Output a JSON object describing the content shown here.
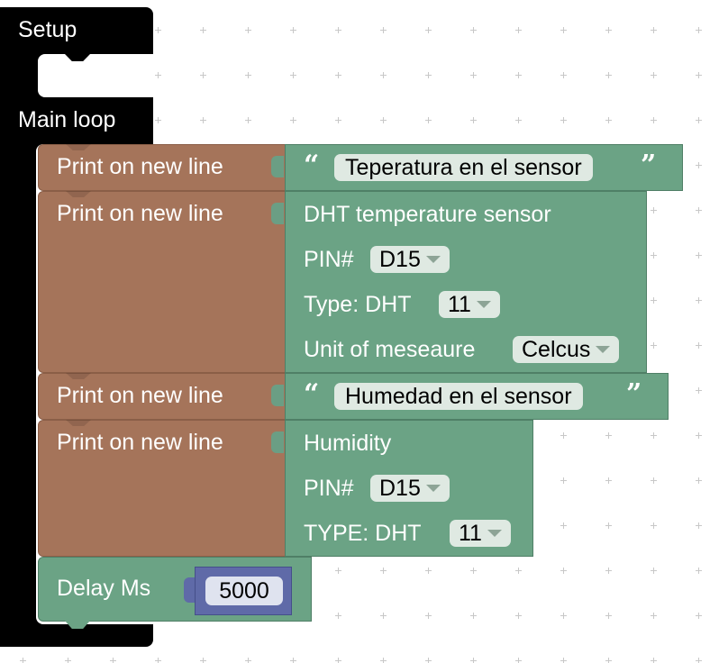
{
  "workspace": {
    "event_block": {
      "setup_label": "Setup",
      "loop_label": "Main loop"
    },
    "print_label": "Print on new line",
    "print_blocks": [
      {
        "label": "Print on new line",
        "string_value": "Teperatura en el sensor"
      },
      {
        "label": "Print on new line",
        "sensor": {
          "title": "DHT temperature sensor",
          "pin_label": "PIN#",
          "pin_value": "D15",
          "type_label": "Type: DHT",
          "type_value": "11",
          "unit_label": "Unit of meseaure",
          "unit_value": "Celcus"
        }
      },
      {
        "label": "Print on new line",
        "string_value": "Humedad en el sensor"
      },
      {
        "label": "Print on new line",
        "sensor": {
          "title": "Humidity",
          "pin_label": "PIN#",
          "pin_value": "D15",
          "type_label": "TYPE: DHT",
          "type_value": "11"
        }
      }
    ],
    "delay_block": {
      "label": "Delay Ms",
      "value": "5000"
    },
    "colors": {
      "event": "#000000",
      "print": "#a5745a",
      "value": "#6ba385",
      "number": "#5f6aa8"
    },
    "icons": {
      "open_quote": "open-quote-icon",
      "close_quote": "close-quote-icon",
      "dropdown": "chevron-down-icon"
    }
  }
}
